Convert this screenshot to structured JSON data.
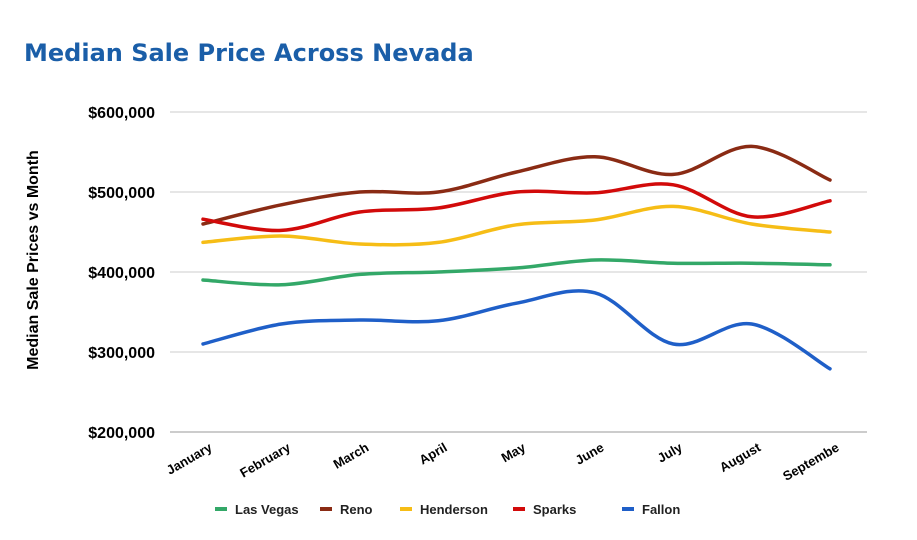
{
  "chart_data": {
    "type": "line",
    "title": "Median Sale Price Across Nevada",
    "xlabel": "",
    "ylabel": "Median Sale Prices vs Month",
    "ylim": [
      200000,
      600000
    ],
    "yticks": [
      200000,
      300000,
      400000,
      500000,
      600000
    ],
    "ytick_labels": [
      "$200,000",
      "$300,000",
      "$400,000",
      "$500,000",
      "$600,000"
    ],
    "grid": true,
    "legend_position": "bottom",
    "smooth": true,
    "categories": [
      "January",
      "February",
      "March",
      "April",
      "May",
      "June",
      "July",
      "August",
      "Septembe"
    ],
    "series": [
      {
        "name": "Las Vegas",
        "color": "#33a868",
        "values": [
          390000,
          384000,
          397000,
          400000,
          405000,
          415000,
          411000,
          411000,
          409000
        ]
      },
      {
        "name": "Reno",
        "color": "#8a2b14",
        "values": [
          460000,
          484000,
          500000,
          500000,
          525000,
          544000,
          522000,
          557000,
          515000
        ]
      },
      {
        "name": "Henderson",
        "color": "#f6bd16",
        "values": [
          437000,
          445000,
          435000,
          437000,
          459000,
          465000,
          482000,
          460000,
          450000
        ]
      },
      {
        "name": "Sparks",
        "color": "#d20a0a",
        "values": [
          466000,
          452000,
          475000,
          480000,
          500000,
          499000,
          509000,
          469000,
          489000
        ]
      },
      {
        "name": "Fallon",
        "color": "#1f5fc8",
        "values": [
          310000,
          335000,
          340000,
          339000,
          361000,
          374000,
          310000,
          335000,
          279000
        ]
      }
    ],
    "title_color": "#1a5ea8"
  }
}
